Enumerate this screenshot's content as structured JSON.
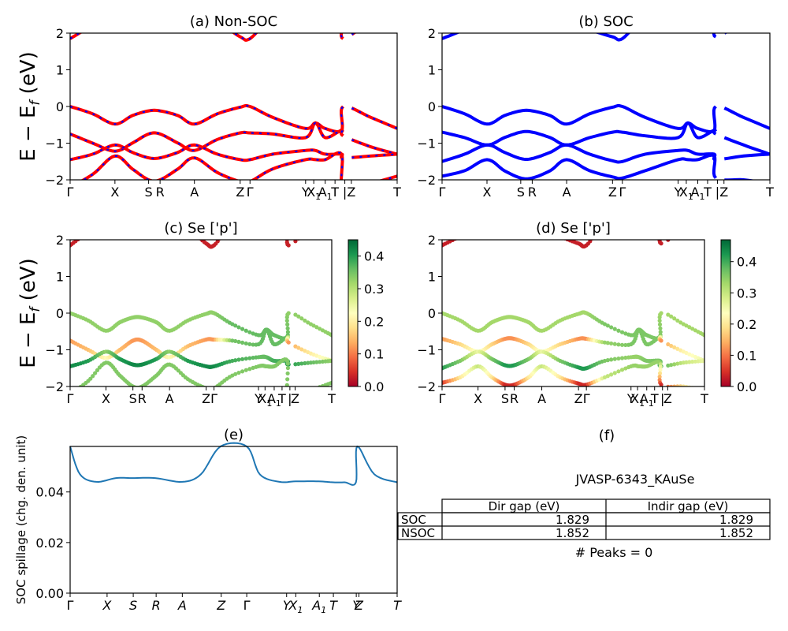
{
  "colors": {
    "nonsoc_line": "#ff0000",
    "nonsoc_dash": "#0000ff",
    "soc_line": "#0000ff",
    "spillage_line": "#1f77b4",
    "colormap": [
      "#a50026",
      "#d73027",
      "#f46d43",
      "#fdae61",
      "#fee08b",
      "#ffffbf",
      "#d9ef8b",
      "#a6d96a",
      "#66bd63",
      "#1a9850",
      "#006837"
    ]
  },
  "chart_data": [
    {
      "id": "a",
      "type": "line",
      "title": "(a) Non-SOC",
      "ylabel": "E − E",
      "ylabel_sub": "f",
      "ylabel_unit": " (eV)",
      "ylim": [
        -2,
        2
      ],
      "yticks": [
        "−2",
        "−1",
        "0",
        "1",
        "2"
      ],
      "kpath": [
        "Γ",
        "X",
        "S",
        "R",
        "A",
        "Z",
        "Γ",
        "Y",
        "X1",
        "A1",
        "T",
        "|",
        "Z",
        "T"
      ],
      "series": [
        {
          "values": [
            0.0,
            -0.2,
            -0.48,
            -0.25,
            -0.12,
            -0.12,
            -0.25,
            -0.48,
            -0.2,
            -0.02,
            0.0,
            -0.3,
            -0.6,
            -0.45,
            -0.6,
            -0.65,
            0.0,
            -0.3,
            -0.6
          ]
        },
        {
          "values": [
            -0.75,
            -1.0,
            -1.22,
            -1.0,
            -0.75,
            -0.75,
            -1.0,
            -1.2,
            -0.9,
            -0.72,
            -0.72,
            -0.75,
            -0.85,
            -0.45,
            -0.85,
            -0.65,
            -0.8,
            -1.1,
            -1.3
          ]
        },
        {
          "values": [
            -1.45,
            -1.3,
            -1.05,
            -1.25,
            -1.4,
            -1.4,
            -1.25,
            -1.05,
            -1.3,
            -1.45,
            -1.45,
            -1.3,
            -1.2,
            -1.2,
            -1.3,
            -1.3,
            -1.4,
            -1.35,
            -1.3
          ]
        },
        {
          "values": [
            -2.2,
            -1.85,
            -1.35,
            -1.7,
            -2.0,
            -2.0,
            -1.7,
            -1.4,
            -1.8,
            -2.05,
            -2.05,
            -1.7,
            -1.45,
            -1.45,
            -1.45,
            -1.3,
            -2.3,
            -2.1,
            -1.9
          ]
        },
        {
          "values": [
            1.85,
            2.2,
            2.4,
            2.4,
            2.4,
            2.4,
            2.4,
            2.4,
            2.3,
            1.9,
            1.85,
            2.4,
            2.4,
            2.4,
            2.4,
            2.4,
            1.85,
            2.3,
            2.4
          ]
        }
      ]
    },
    {
      "id": "b",
      "type": "line",
      "title": "(b) SOC",
      "ylim": [
        -2,
        2
      ],
      "yticks": [
        "−2",
        "−1",
        "0",
        "1",
        "2"
      ],
      "kpath": [
        "Γ",
        "X",
        "S",
        "R",
        "A",
        "Z",
        "Γ",
        "Y",
        "X1",
        "A1",
        "T",
        "|",
        "Z",
        "T"
      ],
      "series": [
        {
          "values": [
            0.0,
            -0.2,
            -0.48,
            -0.25,
            -0.12,
            -0.12,
            -0.25,
            -0.48,
            -0.2,
            -0.02,
            0.0,
            -0.3,
            -0.6,
            -0.45,
            -0.6,
            -0.65,
            0.0,
            -0.3,
            -0.6
          ]
        },
        {
          "values": [
            -0.7,
            -0.85,
            -1.05,
            -0.85,
            -0.7,
            -0.7,
            -0.85,
            -1.05,
            -0.85,
            -0.7,
            -0.7,
            -0.8,
            -0.85,
            -0.45,
            -0.85,
            -0.65,
            -0.75,
            -1.05,
            -1.3
          ]
        },
        {
          "values": [
            -1.5,
            -1.3,
            -1.05,
            -1.25,
            -1.42,
            -1.42,
            -1.25,
            -1.05,
            -1.3,
            -1.48,
            -1.5,
            -1.3,
            -1.2,
            -1.2,
            -1.3,
            -1.3,
            -1.45,
            -1.35,
            -1.3
          ]
        },
        {
          "values": [
            -1.9,
            -1.75,
            -1.45,
            -1.75,
            -1.95,
            -1.95,
            -1.75,
            -1.45,
            -1.75,
            -1.92,
            -1.95,
            -1.75,
            -1.45,
            -1.45,
            -1.45,
            -1.35,
            -1.95,
            -2.0,
            -2.1
          ]
        },
        {
          "values": [
            1.85,
            2.1,
            2.4,
            2.4,
            2.4,
            2.4,
            2.4,
            2.4,
            2.1,
            1.9,
            1.85,
            2.4,
            2.4,
            2.4,
            2.4,
            2.4,
            1.9,
            2.3,
            2.4
          ]
        }
      ]
    },
    {
      "id": "c",
      "type": "scatter",
      "title": "(c)  Se ['p']",
      "ylabel": "E − E",
      "ylabel_sub": "f",
      "ylabel_unit": " (eV)",
      "ylim": [
        -2,
        2
      ],
      "yticks": [
        "−2",
        "−1",
        "0",
        "1",
        "2"
      ],
      "colorbar_ticks": [
        "0.0",
        "0.1",
        "0.2",
        "0.3",
        "0.4"
      ],
      "colorbar_max": 0.45,
      "kpath": [
        "Γ",
        "X",
        "S",
        "R",
        "A",
        "Z",
        "Γ",
        "Y",
        "X1",
        "A1",
        "T",
        "|",
        "Z",
        "T"
      ],
      "series": [
        {
          "values": [
            0.0,
            -0.2,
            -0.48,
            -0.25,
            -0.12,
            -0.12,
            -0.25,
            -0.48,
            -0.2,
            -0.02,
            0.0,
            -0.3,
            -0.6,
            -0.45,
            -0.6,
            -0.65,
            0.0,
            -0.3,
            -0.6
          ],
          "weight": [
            0.33,
            0.33,
            0.33,
            0.33,
            0.33,
            0.33,
            0.33,
            0.33,
            0.33,
            0.33,
            0.33,
            0.36,
            0.36,
            0.36,
            0.36,
            0.36,
            0.33,
            0.33,
            0.33
          ]
        },
        {
          "values": [
            -0.75,
            -1.0,
            -1.22,
            -1.0,
            -0.75,
            -0.75,
            -1.0,
            -1.2,
            -0.9,
            -0.72,
            -0.72,
            -0.75,
            -0.85,
            -0.45,
            -0.85,
            -0.65,
            -0.8,
            -1.1,
            -1.3
          ],
          "weight": [
            0.12,
            0.15,
            0.22,
            0.15,
            0.12,
            0.12,
            0.15,
            0.22,
            0.15,
            0.12,
            0.12,
            0.35,
            0.36,
            0.36,
            0.36,
            0.36,
            0.12,
            0.2,
            0.26
          ]
        },
        {
          "values": [
            -1.45,
            -1.3,
            -1.05,
            -1.25,
            -1.4,
            -1.4,
            -1.25,
            -1.05,
            -1.3,
            -1.45,
            -1.45,
            -1.3,
            -1.2,
            -1.2,
            -1.3,
            -1.3,
            -1.4,
            -1.35,
            -1.3
          ],
          "weight": [
            0.42,
            0.4,
            0.33,
            0.4,
            0.42,
            0.42,
            0.4,
            0.33,
            0.4,
            0.42,
            0.42,
            0.38,
            0.36,
            0.36,
            0.38,
            0.38,
            0.4,
            0.36,
            0.33
          ]
        },
        {
          "values": [
            -2.2,
            -1.85,
            -1.35,
            -1.7,
            -2.0,
            -2.0,
            -1.7,
            -1.4,
            -1.8,
            -2.05,
            -2.05,
            -1.7,
            -1.45,
            -1.45,
            -1.45,
            -1.3,
            -2.3,
            -2.1,
            -1.9
          ],
          "weight": [
            0.34,
            0.34,
            0.34,
            0.34,
            0.34,
            0.34,
            0.34,
            0.34,
            0.34,
            0.34,
            0.34,
            0.34,
            0.34,
            0.34,
            0.34,
            0.34,
            0.34,
            0.34,
            0.34
          ]
        },
        {
          "values": [
            1.85,
            2.2,
            2.4,
            2.4,
            2.4,
            2.4,
            2.4,
            2.4,
            2.3,
            1.9,
            1.85,
            2.4,
            2.4,
            2.4,
            2.4,
            2.4,
            1.85,
            2.3,
            2.4
          ],
          "weight": [
            0.03,
            0.03,
            0.03,
            0.03,
            0.03,
            0.03,
            0.03,
            0.03,
            0.03,
            0.03,
            0.03,
            0.03,
            0.03,
            0.03,
            0.03,
            0.03,
            0.03,
            0.03,
            0.03
          ]
        }
      ]
    },
    {
      "id": "d",
      "type": "scatter",
      "title": "(d) Se ['p']",
      "ylim": [
        -2,
        2
      ],
      "yticks": [
        "−2",
        "−1",
        "0",
        "1",
        "2"
      ],
      "colorbar_ticks": [
        "0.0",
        "0.1",
        "0.2",
        "0.3",
        "0.4"
      ],
      "colorbar_max": 0.47,
      "kpath": [
        "Γ",
        "X",
        "S",
        "R",
        "A",
        "Z",
        "Γ",
        "Y",
        "X1",
        "A1",
        "T",
        "|",
        "Z",
        "T"
      ],
      "series": [
        {
          "values": [
            0.0,
            -0.2,
            -0.48,
            -0.25,
            -0.12,
            -0.12,
            -0.25,
            -0.48,
            -0.2,
            -0.02,
            0.0,
            -0.3,
            -0.6,
            -0.45,
            -0.6,
            -0.65,
            0.0,
            -0.3,
            -0.6
          ],
          "weight": [
            0.33,
            0.33,
            0.33,
            0.33,
            0.33,
            0.33,
            0.33,
            0.33,
            0.33,
            0.33,
            0.33,
            0.36,
            0.36,
            0.36,
            0.36,
            0.36,
            0.33,
            0.33,
            0.33
          ]
        },
        {
          "values": [
            -0.7,
            -0.85,
            -1.05,
            -0.85,
            -0.7,
            -0.7,
            -0.85,
            -1.05,
            -0.85,
            -0.7,
            -0.7,
            -0.8,
            -0.85,
            -0.45,
            -0.85,
            -0.65,
            -0.75,
            -1.05,
            -1.3
          ],
          "weight": [
            0.12,
            0.18,
            0.25,
            0.18,
            0.12,
            0.12,
            0.18,
            0.25,
            0.18,
            0.12,
            0.12,
            0.34,
            0.36,
            0.36,
            0.36,
            0.36,
            0.12,
            0.22,
            0.26
          ]
        },
        {
          "values": [
            -1.5,
            -1.3,
            -1.05,
            -1.25,
            -1.42,
            -1.42,
            -1.25,
            -1.05,
            -1.3,
            -1.48,
            -1.5,
            -1.3,
            -1.2,
            -1.2,
            -1.3,
            -1.3,
            -1.45,
            -1.35,
            -1.3
          ],
          "weight": [
            0.42,
            0.36,
            0.26,
            0.36,
            0.42,
            0.42,
            0.36,
            0.26,
            0.36,
            0.42,
            0.42,
            0.36,
            0.34,
            0.34,
            0.36,
            0.36,
            0.4,
            0.3,
            0.26
          ]
        },
        {
          "values": [
            -1.9,
            -1.75,
            -1.45,
            -1.75,
            -1.95,
            -1.95,
            -1.75,
            -1.45,
            -1.75,
            -1.92,
            -1.95,
            -1.75,
            -1.45,
            -1.45,
            -1.45,
            -1.35,
            -1.95,
            -2.0,
            -2.1
          ],
          "weight": [
            0.04,
            0.2,
            0.3,
            0.2,
            0.04,
            0.04,
            0.2,
            0.3,
            0.2,
            0.04,
            0.04,
            0.3,
            0.34,
            0.34,
            0.34,
            0.34,
            0.04,
            0.2,
            0.28
          ]
        },
        {
          "values": [
            1.85,
            2.1,
            2.4,
            2.4,
            2.4,
            2.4,
            2.4,
            2.4,
            2.1,
            1.9,
            1.85,
            2.4,
            2.4,
            2.4,
            2.4,
            2.4,
            1.9,
            2.3,
            2.4
          ],
          "weight": [
            0.03,
            0.03,
            0.03,
            0.03,
            0.03,
            0.03,
            0.03,
            0.03,
            0.03,
            0.03,
            0.03,
            0.03,
            0.03,
            0.03,
            0.03,
            0.03,
            0.03,
            0.03,
            0.03
          ]
        }
      ]
    },
    {
      "id": "e",
      "type": "line",
      "title": "(e)",
      "ylabel": "SOC spillage (chg. den. unit)",
      "ylim": [
        0,
        0.058
      ],
      "yticks": [
        "0.00",
        "0.02",
        "0.04"
      ],
      "ytick_values": [
        0,
        0.02,
        0.04
      ],
      "kpath": [
        "Γ",
        "X",
        "S",
        "R",
        "A",
        "Z",
        "Γ",
        "Y",
        "X1",
        "A1",
        "T",
        "Y",
        "Z",
        "T"
      ],
      "values": [
        0.058,
        0.047,
        0.044,
        0.0455,
        0.0455,
        0.0455,
        0.044,
        0.047,
        0.058,
        0.058,
        0.047,
        0.044,
        0.0442,
        0.0442,
        0.0438,
        0.0438,
        0.0438,
        0.058,
        0.047,
        0.0438
      ]
    }
  ],
  "panel_f": {
    "title": "(f)",
    "material": "JVASP-6343_KAuSe",
    "table": {
      "headers": [
        "",
        "Dir gap (eV)",
        "Indir gap (eV)"
      ],
      "rows": [
        [
          "SOC",
          "1.829",
          "1.829"
        ],
        [
          "NSOC",
          "1.852",
          "1.852"
        ]
      ]
    },
    "peaks": "# Peaks = 0"
  }
}
